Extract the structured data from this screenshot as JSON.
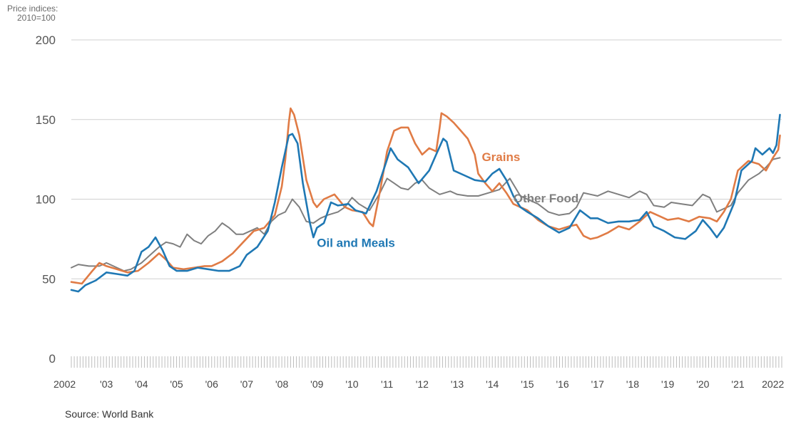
{
  "chart_data": {
    "type": "line",
    "ylabel_lines": [
      "Price indices:",
      "2010=100"
    ],
    "ylim": [
      0,
      200
    ],
    "yticks": [
      0,
      50,
      100,
      150,
      200
    ],
    "xlim": [
      2002,
      2022.25
    ],
    "xticks": [
      {
        "value": 2002,
        "label": "2002"
      },
      {
        "value": 2003,
        "label": "'03"
      },
      {
        "value": 2004,
        "label": "'04"
      },
      {
        "value": 2005,
        "label": "'05"
      },
      {
        "value": 2006,
        "label": "'06"
      },
      {
        "value": 2007,
        "label": "'07"
      },
      {
        "value": 2008,
        "label": "'08"
      },
      {
        "value": 2009,
        "label": "'09"
      },
      {
        "value": 2010,
        "label": "'10"
      },
      {
        "value": 2011,
        "label": "'11"
      },
      {
        "value": 2012,
        "label": "'12"
      },
      {
        "value": 2013,
        "label": "'13"
      },
      {
        "value": 2014,
        "label": "'14"
      },
      {
        "value": 2015,
        "label": "'15"
      },
      {
        "value": 2016,
        "label": "'16"
      },
      {
        "value": 2017,
        "label": "'17"
      },
      {
        "value": 2018,
        "label": "'18"
      },
      {
        "value": 2019,
        "label": "'19"
      },
      {
        "value": 2020,
        "label": "'20"
      },
      {
        "value": 2021,
        "label": "'21"
      },
      {
        "value": 2022,
        "label": "2022"
      }
    ],
    "grid": true,
    "colors": {
      "Grains": "#e07b45",
      "Oil and Meals": "#1f78b4",
      "Other Food": "#7f7f7f"
    },
    "series": [
      {
        "name": "Grains",
        "points": [
          [
            2002.0,
            48
          ],
          [
            2002.3,
            47
          ],
          [
            2002.6,
            55
          ],
          [
            2002.8,
            60
          ],
          [
            2003.0,
            58
          ],
          [
            2003.3,
            56
          ],
          [
            2003.6,
            54
          ],
          [
            2003.9,
            55
          ],
          [
            2004.2,
            60
          ],
          [
            2004.5,
            66
          ],
          [
            2004.7,
            62
          ],
          [
            2004.9,
            57
          ],
          [
            2005.2,
            56
          ],
          [
            2005.5,
            57
          ],
          [
            2005.8,
            58
          ],
          [
            2006.0,
            58
          ],
          [
            2006.3,
            61
          ],
          [
            2006.6,
            66
          ],
          [
            2006.9,
            73
          ],
          [
            2007.2,
            80
          ],
          [
            2007.5,
            82
          ],
          [
            2007.8,
            90
          ],
          [
            2008.0,
            108
          ],
          [
            2008.1,
            125
          ],
          [
            2008.2,
            148
          ],
          [
            2008.25,
            157
          ],
          [
            2008.35,
            153
          ],
          [
            2008.5,
            140
          ],
          [
            2008.7,
            112
          ],
          [
            2008.9,
            98
          ],
          [
            2009.0,
            95
          ],
          [
            2009.2,
            100
          ],
          [
            2009.5,
            103
          ],
          [
            2009.8,
            95
          ],
          [
            2010.0,
            93
          ],
          [
            2010.3,
            92
          ],
          [
            2010.5,
            85
          ],
          [
            2010.6,
            83
          ],
          [
            2010.8,
            105
          ],
          [
            2011.0,
            130
          ],
          [
            2011.2,
            143
          ],
          [
            2011.4,
            145
          ],
          [
            2011.6,
            145
          ],
          [
            2011.8,
            135
          ],
          [
            2012.0,
            128
          ],
          [
            2012.2,
            132
          ],
          [
            2012.4,
            130
          ],
          [
            2012.5,
            145
          ],
          [
            2012.55,
            154
          ],
          [
            2012.7,
            152
          ],
          [
            2012.9,
            148
          ],
          [
            2013.1,
            143
          ],
          [
            2013.3,
            138
          ],
          [
            2013.5,
            128
          ],
          [
            2013.6,
            116
          ],
          [
            2013.8,
            110
          ],
          [
            2014.0,
            105
          ],
          [
            2014.2,
            110
          ],
          [
            2014.4,
            104
          ],
          [
            2014.6,
            97
          ],
          [
            2014.8,
            95
          ],
          [
            2015.0,
            93
          ],
          [
            2015.3,
            87
          ],
          [
            2015.6,
            83
          ],
          [
            2015.9,
            81
          ],
          [
            2016.2,
            83
          ],
          [
            2016.4,
            84
          ],
          [
            2016.6,
            77
          ],
          [
            2016.8,
            75
          ],
          [
            2017.0,
            76
          ],
          [
            2017.3,
            79
          ],
          [
            2017.6,
            83
          ],
          [
            2017.9,
            81
          ],
          [
            2018.2,
            86
          ],
          [
            2018.5,
            92
          ],
          [
            2018.8,
            89
          ],
          [
            2019.0,
            87
          ],
          [
            2019.3,
            88
          ],
          [
            2019.6,
            86
          ],
          [
            2019.9,
            89
          ],
          [
            2020.2,
            88
          ],
          [
            2020.4,
            86
          ],
          [
            2020.6,
            92
          ],
          [
            2020.8,
            100
          ],
          [
            2021.0,
            118
          ],
          [
            2021.3,
            124
          ],
          [
            2021.6,
            122
          ],
          [
            2021.8,
            118
          ],
          [
            2022.0,
            126
          ],
          [
            2022.15,
            131
          ],
          [
            2022.2,
            140
          ]
        ]
      },
      {
        "name": "Oil and Meals",
        "points": [
          [
            2002.0,
            43
          ],
          [
            2002.2,
            42
          ],
          [
            2002.4,
            46
          ],
          [
            2002.7,
            49
          ],
          [
            2003.0,
            54
          ],
          [
            2003.3,
            53
          ],
          [
            2003.6,
            52
          ],
          [
            2003.8,
            55
          ],
          [
            2004.0,
            67
          ],
          [
            2004.2,
            70
          ],
          [
            2004.4,
            76
          ],
          [
            2004.6,
            68
          ],
          [
            2004.8,
            58
          ],
          [
            2005.0,
            55
          ],
          [
            2005.3,
            55
          ],
          [
            2005.6,
            57
          ],
          [
            2005.9,
            56
          ],
          [
            2006.2,
            55
          ],
          [
            2006.5,
            55
          ],
          [
            2006.8,
            58
          ],
          [
            2007.0,
            65
          ],
          [
            2007.3,
            70
          ],
          [
            2007.6,
            80
          ],
          [
            2007.8,
            98
          ],
          [
            2008.0,
            120
          ],
          [
            2008.2,
            140
          ],
          [
            2008.3,
            141
          ],
          [
            2008.45,
            135
          ],
          [
            2008.6,
            110
          ],
          [
            2008.8,
            85
          ],
          [
            2008.9,
            76
          ],
          [
            2009.0,
            82
          ],
          [
            2009.2,
            85
          ],
          [
            2009.4,
            98
          ],
          [
            2009.6,
            96
          ],
          [
            2009.9,
            97
          ],
          [
            2010.1,
            93
          ],
          [
            2010.4,
            91
          ],
          [
            2010.7,
            105
          ],
          [
            2011.0,
            125
          ],
          [
            2011.1,
            132
          ],
          [
            2011.3,
            125
          ],
          [
            2011.6,
            120
          ],
          [
            2011.9,
            110
          ],
          [
            2012.2,
            118
          ],
          [
            2012.4,
            128
          ],
          [
            2012.6,
            138
          ],
          [
            2012.7,
            136
          ],
          [
            2012.9,
            118
          ],
          [
            2013.2,
            115
          ],
          [
            2013.5,
            112
          ],
          [
            2013.8,
            111
          ],
          [
            2014.0,
            116
          ],
          [
            2014.2,
            119
          ],
          [
            2014.4,
            112
          ],
          [
            2014.6,
            102
          ],
          [
            2014.8,
            95
          ],
          [
            2015.0,
            92
          ],
          [
            2015.3,
            88
          ],
          [
            2015.6,
            83
          ],
          [
            2015.9,
            79
          ],
          [
            2016.2,
            82
          ],
          [
            2016.5,
            93
          ],
          [
            2016.8,
            88
          ],
          [
            2017.0,
            88
          ],
          [
            2017.3,
            85
          ],
          [
            2017.6,
            86
          ],
          [
            2017.9,
            86
          ],
          [
            2018.2,
            87
          ],
          [
            2018.4,
            92
          ],
          [
            2018.6,
            83
          ],
          [
            2018.9,
            80
          ],
          [
            2019.2,
            76
          ],
          [
            2019.5,
            75
          ],
          [
            2019.8,
            80
          ],
          [
            2020.0,
            87
          ],
          [
            2020.2,
            82
          ],
          [
            2020.4,
            76
          ],
          [
            2020.6,
            82
          ],
          [
            2020.9,
            98
          ],
          [
            2021.1,
            118
          ],
          [
            2021.4,
            124
          ],
          [
            2021.5,
            132
          ],
          [
            2021.7,
            128
          ],
          [
            2021.9,
            132
          ],
          [
            2022.0,
            129
          ],
          [
            2022.1,
            134
          ],
          [
            2022.2,
            153
          ]
        ]
      },
      {
        "name": "Other Food",
        "points": [
          [
            2002.0,
            57
          ],
          [
            2002.2,
            59
          ],
          [
            2002.5,
            58
          ],
          [
            2002.8,
            58
          ],
          [
            2003.0,
            60
          ],
          [
            2003.3,
            57
          ],
          [
            2003.5,
            55
          ],
          [
            2003.7,
            56
          ],
          [
            2004.0,
            60
          ],
          [
            2004.3,
            66
          ],
          [
            2004.5,
            70
          ],
          [
            2004.7,
            73
          ],
          [
            2004.9,
            72
          ],
          [
            2005.1,
            70
          ],
          [
            2005.3,
            78
          ],
          [
            2005.5,
            74
          ],
          [
            2005.7,
            72
          ],
          [
            2005.9,
            77
          ],
          [
            2006.1,
            80
          ],
          [
            2006.3,
            85
          ],
          [
            2006.5,
            82
          ],
          [
            2006.7,
            78
          ],
          [
            2006.9,
            78
          ],
          [
            2007.1,
            80
          ],
          [
            2007.3,
            82
          ],
          [
            2007.5,
            78
          ],
          [
            2007.7,
            86
          ],
          [
            2007.9,
            90
          ],
          [
            2008.1,
            92
          ],
          [
            2008.3,
            100
          ],
          [
            2008.5,
            95
          ],
          [
            2008.7,
            86
          ],
          [
            2008.9,
            85
          ],
          [
            2009.1,
            88
          ],
          [
            2009.3,
            90
          ],
          [
            2009.6,
            92
          ],
          [
            2009.8,
            95
          ],
          [
            2010.0,
            101
          ],
          [
            2010.2,
            97
          ],
          [
            2010.5,
            93
          ],
          [
            2010.8,
            104
          ],
          [
            2011.0,
            113
          ],
          [
            2011.2,
            110
          ],
          [
            2011.4,
            107
          ],
          [
            2011.6,
            106
          ],
          [
            2011.8,
            110
          ],
          [
            2012.0,
            112
          ],
          [
            2012.2,
            107
          ],
          [
            2012.5,
            103
          ],
          [
            2012.8,
            105
          ],
          [
            2013.0,
            103
          ],
          [
            2013.3,
            102
          ],
          [
            2013.6,
            102
          ],
          [
            2013.9,
            104
          ],
          [
            2014.2,
            106
          ],
          [
            2014.5,
            113
          ],
          [
            2014.8,
            102
          ],
          [
            2015.0,
            100
          ],
          [
            2015.3,
            97
          ],
          [
            2015.6,
            92
          ],
          [
            2015.9,
            90
          ],
          [
            2016.2,
            91
          ],
          [
            2016.4,
            95
          ],
          [
            2016.6,
            104
          ],
          [
            2016.8,
            103
          ],
          [
            2017.0,
            102
          ],
          [
            2017.3,
            105
          ],
          [
            2017.6,
            103
          ],
          [
            2017.9,
            101
          ],
          [
            2018.2,
            105
          ],
          [
            2018.4,
            103
          ],
          [
            2018.6,
            96
          ],
          [
            2018.9,
            95
          ],
          [
            2019.1,
            98
          ],
          [
            2019.4,
            97
          ],
          [
            2019.7,
            96
          ],
          [
            2020.0,
            103
          ],
          [
            2020.2,
            101
          ],
          [
            2020.4,
            92
          ],
          [
            2020.6,
            94
          ],
          [
            2020.8,
            96
          ],
          [
            2021.0,
            104
          ],
          [
            2021.3,
            112
          ],
          [
            2021.6,
            116
          ],
          [
            2021.8,
            120
          ],
          [
            2022.0,
            125
          ],
          [
            2022.2,
            126
          ]
        ]
      }
    ],
    "annotations": [
      {
        "text": "Grains",
        "series": "Grains",
        "x": 2013.7,
        "y": 124
      },
      {
        "text": "Other Food",
        "series": "Other Food",
        "x": 2014.6,
        "y": 98
      },
      {
        "text": "Oil and Meals",
        "series": "Oil and Meals",
        "x": 2009.0,
        "y": 70
      }
    ],
    "source": "Source: World Bank"
  }
}
